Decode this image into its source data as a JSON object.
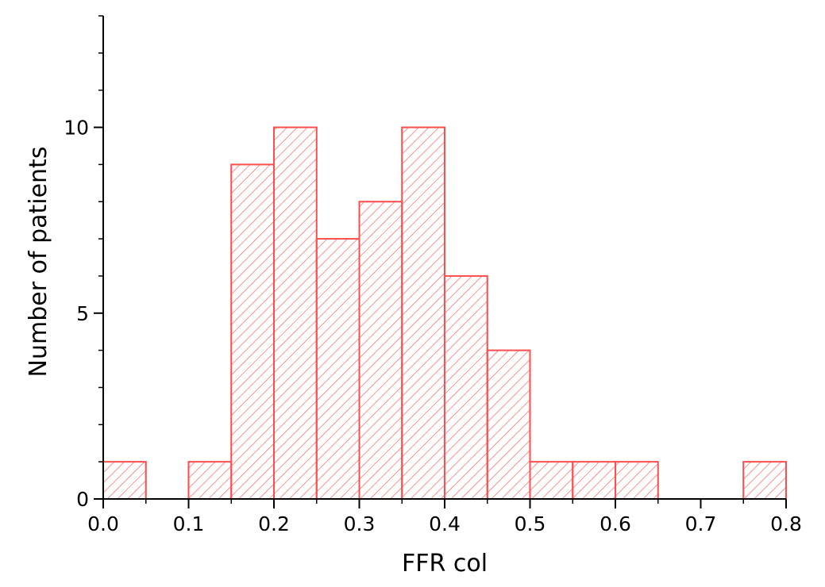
{
  "chart_data": {
    "type": "bar",
    "subtype": "histogram",
    "title": "",
    "xlabel": "FFR col",
    "ylabel": "Number of patients",
    "bin_width": 0.05,
    "bins": [
      {
        "start": 0.0,
        "end": 0.05,
        "count": 1
      },
      {
        "start": 0.05,
        "end": 0.1,
        "count": 0
      },
      {
        "start": 0.1,
        "end": 0.15,
        "count": 1
      },
      {
        "start": 0.15,
        "end": 0.2,
        "count": 9
      },
      {
        "start": 0.2,
        "end": 0.25,
        "count": 10
      },
      {
        "start": 0.25,
        "end": 0.3,
        "count": 7
      },
      {
        "start": 0.3,
        "end": 0.35,
        "count": 8
      },
      {
        "start": 0.35,
        "end": 0.4,
        "count": 10
      },
      {
        "start": 0.4,
        "end": 0.45,
        "count": 6
      },
      {
        "start": 0.45,
        "end": 0.5,
        "count": 4
      },
      {
        "start": 0.5,
        "end": 0.55,
        "count": 1
      },
      {
        "start": 0.55,
        "end": 0.6,
        "count": 1
      },
      {
        "start": 0.6,
        "end": 0.65,
        "count": 1
      },
      {
        "start": 0.65,
        "end": 0.7,
        "count": 0
      },
      {
        "start": 0.7,
        "end": 0.75,
        "count": 0
      },
      {
        "start": 0.75,
        "end": 0.8,
        "count": 1
      }
    ],
    "xlim": [
      0.0,
      0.8
    ],
    "ylim": [
      0,
      13
    ],
    "x_ticks": [
      "0.0",
      "0.1",
      "0.2",
      "0.3",
      "0.4",
      "0.5",
      "0.6",
      "0.7",
      "0.8"
    ],
    "y_ticks": [
      "0",
      "5",
      "10"
    ],
    "grid": false,
    "legend": "none",
    "bar_color": "#ff4d4d",
    "bar_fill": "hatched"
  }
}
